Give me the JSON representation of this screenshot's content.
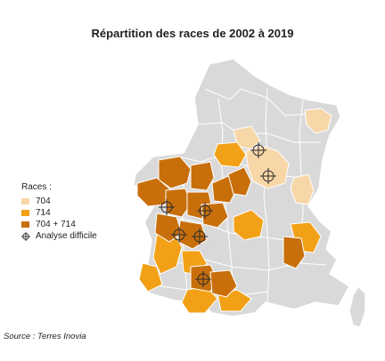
{
  "title": "Répartition des races de 2002 à 2019",
  "legend": {
    "heading": "Races :",
    "items": [
      {
        "label": "704",
        "color": "#f7d7a7"
      },
      {
        "label": "714",
        "color": "#f2a117"
      },
      {
        "label": "704 + 714",
        "color": "#c86f0c"
      },
      {
        "label": "Analyse difficile",
        "icon": "crosshair-icon"
      }
    ]
  },
  "source": "Source : Terres Inovia",
  "colors": {
    "background_departement": "#d9d9d9",
    "border": "#ffffff",
    "race_704": "#f7d7a7",
    "race_714": "#f2a117",
    "race_704_714": "#c86f0c"
  }
}
